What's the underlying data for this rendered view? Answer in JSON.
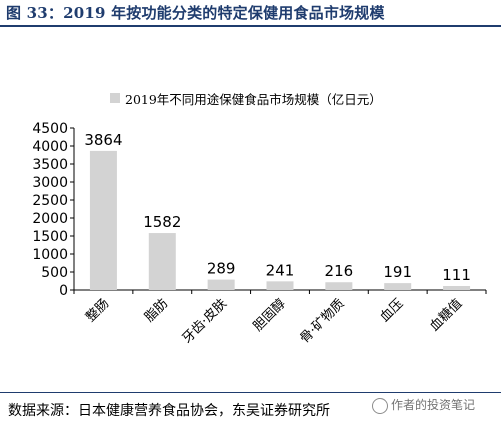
{
  "title": "图 33：2019 年按功能分类的特定保健用食品市场规模",
  "source": "数据来源：日本健康营养食品协会，东吴证券研究所",
  "watermark": "作者的投资笔记",
  "chart_data": {
    "type": "bar",
    "categories": [
      "整肠",
      "脂肪",
      "牙齿·皮肤",
      "胆固醇",
      "骨·矿物质",
      "血压",
      "血糖值"
    ],
    "series": [
      {
        "name": "2019年不同用途保健食品市场规模（亿日元）",
        "values": [
          3864,
          1582,
          289,
          241,
          216,
          191,
          111
        ]
      }
    ],
    "ylim": [
      0,
      4500
    ],
    "yticks": [
      0,
      500,
      1000,
      1500,
      2000,
      2500,
      3000,
      3500,
      4000,
      4500
    ],
    "grid": false,
    "legend": "top",
    "bar_color": "#d3d3d3",
    "title_color": "#1f3c6e"
  }
}
